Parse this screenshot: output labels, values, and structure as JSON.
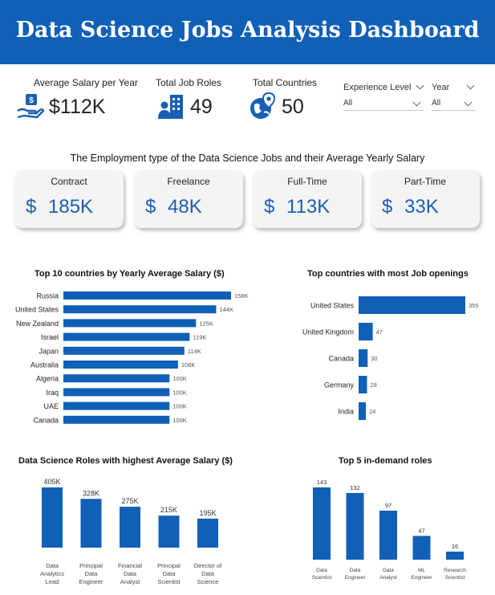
{
  "header": {
    "title": "Data Science Jobs Analysis Dashboard"
  },
  "colors": {
    "header_bg": "#1060b8",
    "accent": "#1a5fb4",
    "bar": "#1060b8"
  },
  "kpis": [
    {
      "label": "Average Salary per Year",
      "value": "$112K",
      "icon": "money-hand-icon"
    },
    {
      "label": "Total Job Roles",
      "value": "49",
      "icon": "people-building-icon"
    },
    {
      "label": "Total Countries",
      "value": "50",
      "icon": "globe-pin-icon"
    }
  ],
  "slicers": {
    "experience": {
      "label": "Experience Level",
      "value": "All"
    },
    "year": {
      "label": "Year",
      "value": "All"
    }
  },
  "employment": {
    "title": "The Employment type of the Data Science Jobs and their Average Yearly Salary",
    "currency": "$",
    "cards": [
      {
        "label": "Contract",
        "value": "185K"
      },
      {
        "label": "Freelance",
        "value": "48K"
      },
      {
        "label": "Full-Time",
        "value": "113K"
      },
      {
        "label": "Part-Time",
        "value": "33K"
      }
    ]
  },
  "chart_data": [
    {
      "type": "bar",
      "orientation": "horizontal",
      "title": "Top 10 countries by Yearly Average Salary ($)",
      "categories": [
        "Russia",
        "United States",
        "New Zealand",
        "Israel",
        "Japan",
        "Australia",
        "Algeria",
        "Iraq",
        "UAE",
        "Canada"
      ],
      "values": [
        158,
        144,
        125,
        119,
        114,
        108,
        100,
        100,
        100,
        100
      ],
      "labels": [
        "158K",
        "144K",
        "125K",
        "119K",
        "114K",
        "108K",
        "100K",
        "100K",
        "100K",
        "100K"
      ]
    },
    {
      "type": "bar",
      "orientation": "horizontal",
      "title": "Top countries with most Job openings",
      "categories": [
        "United States",
        "United Kingdom",
        "Canada",
        "Germany",
        "India"
      ],
      "values": [
        355,
        47,
        30,
        28,
        24
      ],
      "labels": [
        "355",
        "47",
        "30",
        "28",
        "24"
      ]
    },
    {
      "type": "bar",
      "orientation": "vertical",
      "title": "Data Science Roles with highest Average Salary ($)",
      "categories": [
        "Data Analytics Lead",
        "Principal Data Engineer",
        "Financial Data Analyst",
        "Principal Data Scientist",
        "Director of Data Science"
      ],
      "category_lines": [
        [
          "Data",
          "Analytics",
          "Lead"
        ],
        [
          "Principal",
          "Data",
          "Engineer"
        ],
        [
          "Financial",
          "Data",
          "Analyst"
        ],
        [
          "Principal",
          "Data",
          "Scientist"
        ],
        [
          "Director of",
          "Data",
          "Science"
        ]
      ],
      "values": [
        405,
        328,
        275,
        215,
        195
      ],
      "labels": [
        "405K",
        "328K",
        "275K",
        "215K",
        "195K"
      ]
    },
    {
      "type": "bar",
      "orientation": "vertical",
      "title": "Top 5 in-demand roles",
      "categories": [
        "Data Scientist",
        "Data Engineer",
        "Data Analyst",
        "ML Engineer",
        "Research Scientist"
      ],
      "category_lines": [
        [
          "Data",
          "Scientist"
        ],
        [
          "Data",
          "Engineer"
        ],
        [
          "Data",
          "Analyst"
        ],
        [
          "ML",
          "Engineer"
        ],
        [
          "Research",
          "Scientist"
        ]
      ],
      "values": [
        143,
        132,
        97,
        47,
        16
      ],
      "labels": [
        "143",
        "132",
        "97",
        "47",
        "16"
      ]
    }
  ]
}
